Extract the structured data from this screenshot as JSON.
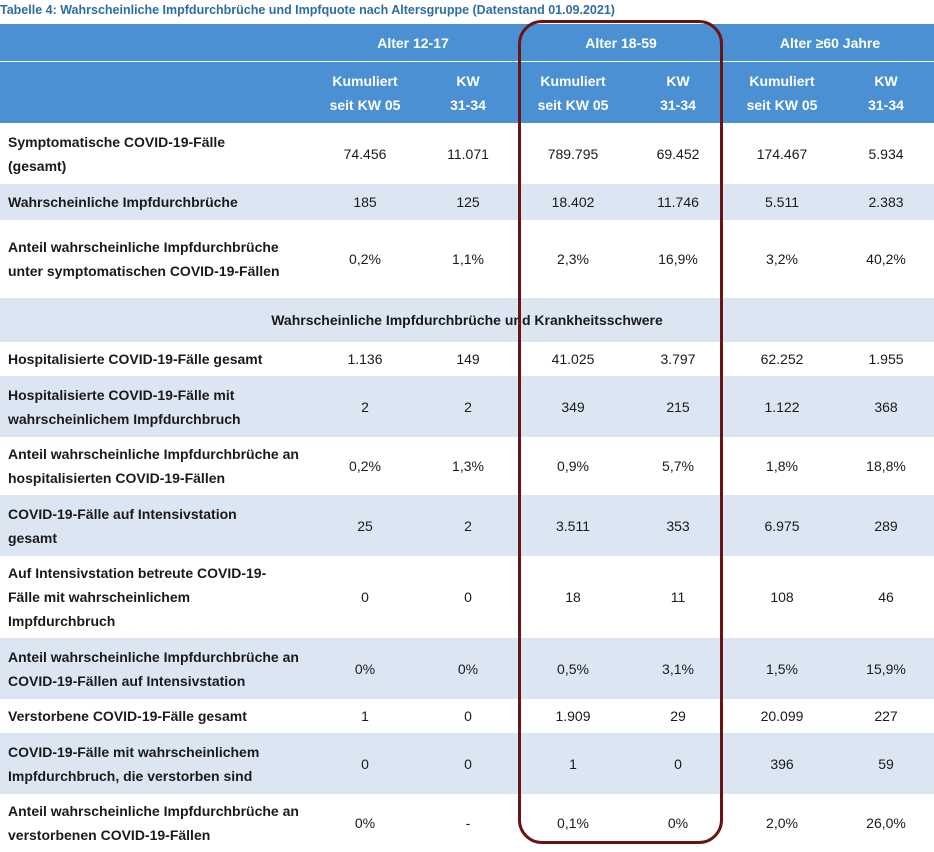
{
  "title": "Tabelle 4: Wahrscheinliche Impfdurchbrüche und Impfquote nach Altersgruppe (Datenstand 01.09.2021)",
  "header": {
    "groups": [
      "Alter 12-17",
      "Alter 18-59",
      "Alter ≥60 Jahre"
    ],
    "sub": {
      "cum1": "Kumuliert",
      "cum2": "seit KW 05",
      "kw1": "KW",
      "kw2": "31-34"
    }
  },
  "section_title": "Wahrscheinliche Impfdurchbrüche und Krankheitsschwere",
  "rows_top": [
    {
      "label": "Symptomatische COVID-19-Fälle (gesamt)",
      "values": [
        "74.456",
        "11.071",
        "789.795",
        "69.452",
        "174.467",
        "5.934"
      ]
    },
    {
      "label": "Wahrscheinliche Impfdurchbrüche",
      "values": [
        "185",
        "125",
        "18.402",
        "11.746",
        "5.511",
        "2.383"
      ]
    },
    {
      "label": "Anteil wahrscheinliche Impfdurchbrüche unter symptomatischen COVID-19-Fällen",
      "values": [
        "0,2%",
        "1,1%",
        "2,3%",
        "16,9%",
        "3,2%",
        "40,2%"
      ]
    }
  ],
  "rows_bottom": [
    {
      "label": "Hospitalisierte COVID-19-Fälle gesamt",
      "values": [
        "1.136",
        "149",
        "41.025",
        "3.797",
        "62.252",
        "1.955"
      ]
    },
    {
      "label": "Hospitalisierte COVID-19-Fälle mit wahrscheinlichem Impfdurchbruch",
      "values": [
        "2",
        "2",
        "349",
        "215",
        "1.122",
        "368"
      ]
    },
    {
      "label": "Anteil wahrscheinliche Impfdurchbrüche an hospitalisierten COVID-19-Fällen",
      "values": [
        "0,2%",
        "1,3%",
        "0,9%",
        "5,7%",
        "1,8%",
        "18,8%"
      ]
    },
    {
      "label": "COVID-19-Fälle auf Intensivstation gesamt",
      "values": [
        "25",
        "2",
        "3.511",
        "353",
        "6.975",
        "289"
      ]
    },
    {
      "label": "Auf Intensivstation betreute COVID-19-Fälle mit wahrscheinlichem Impfdurchbruch",
      "values": [
        "0",
        "0",
        "18",
        "11",
        "108",
        "46"
      ]
    },
    {
      "label": "Anteil wahrscheinliche Impfdurchbrüche an COVID-19-Fällen auf Intensivstation",
      "values": [
        "0%",
        "0%",
        "0,5%",
        "3,1%",
        "1,5%",
        "15,9%"
      ]
    },
    {
      "label": "Verstorbene COVID-19-Fälle gesamt",
      "values": [
        "1",
        "0",
        "1.909",
        "29",
        "20.099",
        "227"
      ]
    },
    {
      "label": "COVID-19-Fälle mit wahrscheinlichem Impfdurchbruch, die verstorben sind",
      "values": [
        "0",
        "0",
        "1",
        "0",
        "396",
        "59"
      ]
    },
    {
      "label": "Anteil wahrscheinliche Impfdurchbrüche an verstorbenen COVID-19-Fällen",
      "values": [
        "0%",
        "-",
        "0,1%",
        "0%",
        "2,0%",
        "26,0%"
      ]
    }
  ]
}
